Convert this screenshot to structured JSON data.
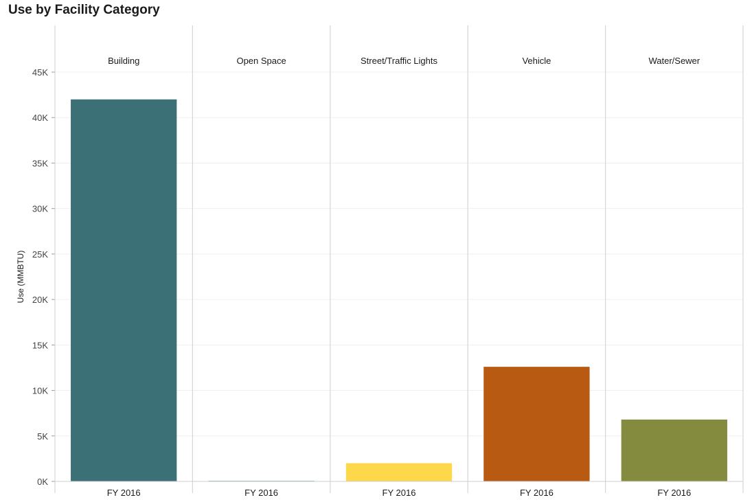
{
  "chart_data": {
    "type": "bar",
    "title": "Use by Facility Category",
    "ylabel": "Use (MMBTU)",
    "xlabel": "",
    "ylim": [
      0,
      45000
    ],
    "yticks": [
      0,
      5000,
      10000,
      15000,
      20000,
      25000,
      30000,
      35000,
      40000,
      45000
    ],
    "ytick_labels": [
      "0K",
      "5K",
      "10K",
      "15K",
      "20K",
      "25K",
      "30K",
      "35K",
      "40K",
      "45K"
    ],
    "grid": "horizontal",
    "panels": [
      {
        "label": "Building",
        "category": "FY 2016",
        "value": 42000,
        "color": "#3b7077"
      },
      {
        "label": "Open Space",
        "category": "FY 2016",
        "value": 60,
        "color": "#2f8a72"
      },
      {
        "label": "Street/Traffic Lights",
        "category": "FY 2016",
        "value": 2000,
        "color": "#fdd84b"
      },
      {
        "label": "Vehicle",
        "category": "FY 2016",
        "value": 12600,
        "color": "#b85a12"
      },
      {
        "label": "Water/Sewer",
        "category": "FY 2016",
        "value": 6800,
        "color": "#848a3e"
      }
    ]
  }
}
